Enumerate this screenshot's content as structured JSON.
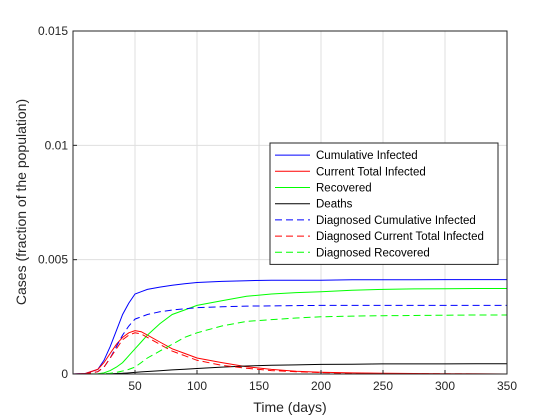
{
  "chart_data": {
    "type": "line",
    "xlabel": "Time (days)",
    "ylabel": "Cases (fraction of the population)",
    "xlim": [
      0,
      350
    ],
    "ylim": [
      0,
      0.015
    ],
    "x_ticks": [
      50,
      100,
      150,
      200,
      250,
      300,
      350
    ],
    "x_tick_labels": [
      "50",
      "100",
      "150",
      "200",
      "250",
      "300",
      "350"
    ],
    "y_ticks": [
      0,
      0.005,
      0.01,
      0.015
    ],
    "y_tick_labels": [
      "0",
      "0.005",
      "0.01",
      "0.015"
    ],
    "grid": true,
    "legend_position": "center-right",
    "x": [
      0,
      10,
      20,
      25,
      30,
      35,
      40,
      45,
      50,
      55,
      60,
      70,
      80,
      90,
      100,
      120,
      140,
      160,
      180,
      200,
      225,
      250,
      275,
      300,
      325,
      350
    ],
    "series": [
      {
        "name": "Cumulative Infected",
        "color": "#0000ff",
        "dash": "solid",
        "values": [
          0,
          2e-05,
          0.0002,
          0.0006,
          0.0012,
          0.0019,
          0.0026,
          0.0031,
          0.0035,
          0.0036,
          0.0037,
          0.0038,
          0.00388,
          0.00395,
          0.004,
          0.00405,
          0.00408,
          0.0041,
          0.0041,
          0.0041,
          0.00412,
          0.00412,
          0.00412,
          0.00413,
          0.00413,
          0.00413
        ]
      },
      {
        "name": "Current Total Infected",
        "color": "#ff0000",
        "dash": "solid",
        "values": [
          0,
          2e-05,
          0.0002,
          0.0005,
          0.0009,
          0.0013,
          0.0016,
          0.0018,
          0.0019,
          0.00185,
          0.0017,
          0.0014,
          0.0011,
          0.0009,
          0.0007,
          0.0005,
          0.00032,
          0.0002,
          0.00012,
          8e-05,
          5e-05,
          3e-05,
          2e-05,
          1e-05,
          1e-05,
          0
        ]
      },
      {
        "name": "Recovered",
        "color": "#00ff00",
        "dash": "solid",
        "values": [
          0,
          0,
          1e-05,
          5e-05,
          0.00015,
          0.0003,
          0.0005,
          0.0008,
          0.0011,
          0.0014,
          0.0017,
          0.0022,
          0.0026,
          0.0028,
          0.003,
          0.0032,
          0.0034,
          0.0035,
          0.00356,
          0.0036,
          0.00366,
          0.0037,
          0.00372,
          0.00373,
          0.00374,
          0.00374
        ]
      },
      {
        "name": "Deaths",
        "color": "#000000",
        "dash": "solid",
        "values": [
          0,
          0,
          0,
          0,
          1e-05,
          2e-05,
          3e-05,
          5e-05,
          7e-05,
          9e-05,
          0.00011,
          0.00014,
          0.00018,
          0.00021,
          0.00024,
          0.0003,
          0.00035,
          0.00038,
          0.0004,
          0.00042,
          0.00043,
          0.00044,
          0.00044,
          0.00044,
          0.00045,
          0.00045
        ]
      },
      {
        "name": "Diagnosed Cumulative Infected",
        "color": "#0000ff",
        "dash": "dashed",
        "values": [
          0,
          1e-05,
          0.0001,
          0.0003,
          0.0007,
          0.0012,
          0.0017,
          0.0021,
          0.0024,
          0.0025,
          0.0026,
          0.00272,
          0.0028,
          0.00285,
          0.0029,
          0.00294,
          0.00297,
          0.00298,
          0.00299,
          0.003,
          0.003,
          0.003,
          0.003,
          0.003,
          0.003,
          0.003
        ]
      },
      {
        "name": "Diagnosed Current Total Infected",
        "color": "#ff0000",
        "dash": "dashed",
        "values": [
          0,
          1e-05,
          0.0001,
          0.0003,
          0.0007,
          0.0011,
          0.0015,
          0.0017,
          0.0018,
          0.00175,
          0.0016,
          0.0013,
          0.001,
          0.0008,
          0.0006,
          0.00038,
          0.00025,
          0.00015,
          0.0001,
          6e-05,
          3e-05,
          2e-05,
          1e-05,
          1e-05,
          0,
          0
        ]
      },
      {
        "name": "Diagnosed Recovered",
        "color": "#00ff00",
        "dash": "dashed",
        "values": [
          0,
          0,
          0,
          1e-05,
          3e-05,
          7e-05,
          0.00013,
          0.0002,
          0.0003,
          0.0005,
          0.0007,
          0.001,
          0.0013,
          0.0016,
          0.0018,
          0.0021,
          0.0023,
          0.00238,
          0.00245,
          0.0025,
          0.00253,
          0.00255,
          0.00256,
          0.00257,
          0.00258,
          0.00258
        ]
      }
    ]
  }
}
